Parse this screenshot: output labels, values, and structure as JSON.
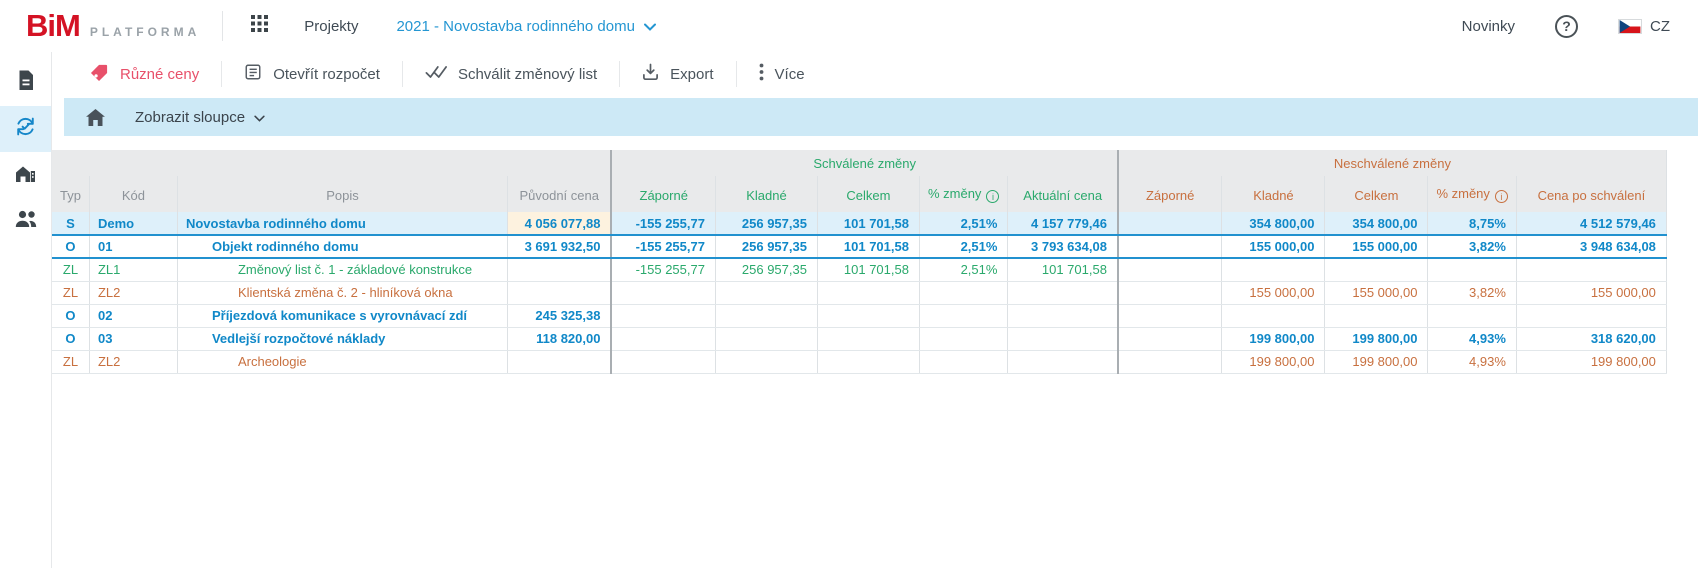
{
  "header": {
    "logo_text": "BiM",
    "logo_sub": "PLATFORMA",
    "projects_label": "Projekty",
    "project_selector": "2021 - Novostavba rodinného domu",
    "news_label": "Novinky",
    "language": "CZ"
  },
  "sidebar": {
    "items": [
      {
        "icon": "document-icon",
        "active": false
      },
      {
        "icon": "sync-check-icon",
        "active": true
      },
      {
        "icon": "building-icon",
        "active": false
      },
      {
        "icon": "users-icon",
        "active": false
      }
    ]
  },
  "toolbar": {
    "buttons": [
      {
        "label": "Různé ceny",
        "icon": "tag-icon",
        "color": "#e8506a"
      },
      {
        "label": "Otevřít rozpočet",
        "icon": "checklist-icon"
      },
      {
        "label": "Schválit změnový list",
        "icon": "double-check-icon"
      },
      {
        "label": "Export",
        "icon": "download-icon"
      },
      {
        "label": "Více",
        "icon": "kebab-icon"
      }
    ]
  },
  "filterbar": {
    "columns_label": "Zobrazit sloupce"
  },
  "table": {
    "group_headers": {
      "approved": "Schválené změny",
      "unapproved": "Neschválené změny"
    },
    "columns": [
      {
        "key": "typ",
        "label": "Typ",
        "group": ""
      },
      {
        "key": "kod",
        "label": "Kód",
        "group": ""
      },
      {
        "key": "popis",
        "label": "Popis",
        "group": ""
      },
      {
        "key": "puvodni",
        "label": "Původní cena",
        "group": "",
        "num": true
      },
      {
        "key": "s_zap",
        "label": "Záporné",
        "group": "approved",
        "num": true
      },
      {
        "key": "s_klad",
        "label": "Kladné",
        "group": "approved",
        "num": true
      },
      {
        "key": "s_cel",
        "label": "Celkem",
        "group": "approved",
        "num": true
      },
      {
        "key": "s_pct",
        "label": "% změny",
        "group": "approved",
        "num": true,
        "info": true
      },
      {
        "key": "aktualni",
        "label": "Aktuální cena",
        "group": "approved",
        "num": true
      },
      {
        "key": "n_zap",
        "label": "Záporné",
        "group": "unapproved",
        "num": true
      },
      {
        "key": "n_klad",
        "label": "Kladné",
        "group": "unapproved",
        "num": true
      },
      {
        "key": "n_cel",
        "label": "Celkem",
        "group": "unapproved",
        "num": true
      },
      {
        "key": "n_pct",
        "label": "% změny",
        "group": "unapproved",
        "num": true,
        "info": true
      },
      {
        "key": "po_schvaleni",
        "label": "Cena po schválení",
        "group": "unapproved",
        "num": true
      }
    ],
    "rows": [
      {
        "tone": "blue",
        "selected": true,
        "open": true,
        "indent": 0,
        "highlight_puvodni": true,
        "cells": {
          "typ": "S",
          "kod": "Demo",
          "popis": "Novostavba rodinného domu",
          "puvodni": "4 056 077,88",
          "s_zap": "-155 255,77",
          "s_klad": "256 957,35",
          "s_cel": "101 701,58",
          "s_pct": "2,51%",
          "aktualni": "4 157 779,46",
          "n_zap": "",
          "n_klad": "354 800,00",
          "n_cel": "354 800,00",
          "n_pct": "8,75%",
          "po_schvaleni": "4 512 579,46"
        }
      },
      {
        "tone": "blue",
        "selected": false,
        "open": true,
        "indent": 1,
        "highlight_puvodni": false,
        "cells": {
          "typ": "O",
          "kod": "01",
          "popis": "Objekt rodinného domu",
          "puvodni": "3 691 932,50",
          "s_zap": "-155 255,77",
          "s_klad": "256 957,35",
          "s_cel": "101 701,58",
          "s_pct": "2,51%",
          "aktualni": "3 793 634,08",
          "n_zap": "",
          "n_klad": "155 000,00",
          "n_cel": "155 000,00",
          "n_pct": "3,82%",
          "po_schvaleni": "3 948 634,08"
        }
      },
      {
        "tone": "green",
        "selected": false,
        "open": false,
        "indent": 2,
        "highlight_puvodni": false,
        "cells": {
          "typ": "ZL",
          "kod": "ZL1",
          "popis": "Změnový list č. 1 - základové konstrukce",
          "puvodni": "",
          "s_zap": "-155 255,77",
          "s_klad": "256 957,35",
          "s_cel": "101 701,58",
          "s_pct": "2,51%",
          "aktualni": "101 701,58",
          "n_zap": "",
          "n_klad": "",
          "n_cel": "",
          "n_pct": "",
          "po_schvaleni": ""
        }
      },
      {
        "tone": "orange",
        "selected": false,
        "open": false,
        "indent": 2,
        "highlight_puvodni": false,
        "cells": {
          "typ": "ZL",
          "kod": "ZL2",
          "popis": "Klientská změna č. 2 - hliníková okna",
          "puvodni": "",
          "s_zap": "",
          "s_klad": "",
          "s_cel": "",
          "s_pct": "",
          "aktualni": "",
          "n_zap": "",
          "n_klad": "155 000,00",
          "n_cel": "155 000,00",
          "n_pct": "3,82%",
          "po_schvaleni": "155 000,00"
        }
      },
      {
        "tone": "blue",
        "selected": false,
        "open": false,
        "indent": 1,
        "highlight_puvodni": false,
        "cells": {
          "typ": "O",
          "kod": "02",
          "popis": "Příjezdová komunikace s vyrovnávací zdí",
          "puvodni": "245 325,38",
          "s_zap": "",
          "s_klad": "",
          "s_cel": "",
          "s_pct": "",
          "aktualni": "",
          "n_zap": "",
          "n_klad": "",
          "n_cel": "",
          "n_pct": "",
          "po_schvaleni": ""
        }
      },
      {
        "tone": "blue",
        "selected": false,
        "open": false,
        "indent": 1,
        "highlight_puvodni": false,
        "cells": {
          "typ": "O",
          "kod": "03",
          "popis": "Vedlejší rozpočtové náklady",
          "puvodni": "118 820,00",
          "s_zap": "",
          "s_klad": "",
          "s_cel": "",
          "s_pct": "",
          "aktualni": "",
          "n_zap": "",
          "n_klad": "199 800,00",
          "n_cel": "199 800,00",
          "n_pct": "4,93%",
          "po_schvaleni": "318 620,00"
        }
      },
      {
        "tone": "orange",
        "selected": false,
        "open": false,
        "indent": 2,
        "highlight_puvodni": false,
        "cells": {
          "typ": "ZL",
          "kod": "ZL2",
          "popis": "Archeologie",
          "puvodni": "",
          "s_zap": "",
          "s_klad": "",
          "s_cel": "",
          "s_pct": "",
          "aktualni": "",
          "n_zap": "",
          "n_klad": "199 800,00",
          "n_cel": "199 800,00",
          "n_pct": "4,93%",
          "po_schvaleni": "199 800,00"
        }
      }
    ]
  },
  "colors": {
    "logo_red": "#d41224",
    "accent_blue": "#1088c8",
    "approved_green": "#2aa96c",
    "unapproved_orange": "#c8703f",
    "toolbar_pink": "#e8506a",
    "row_highlight": "#def0fa",
    "original_price_highlight": "#fdf2df",
    "bar_blue": "#cde9f6"
  }
}
